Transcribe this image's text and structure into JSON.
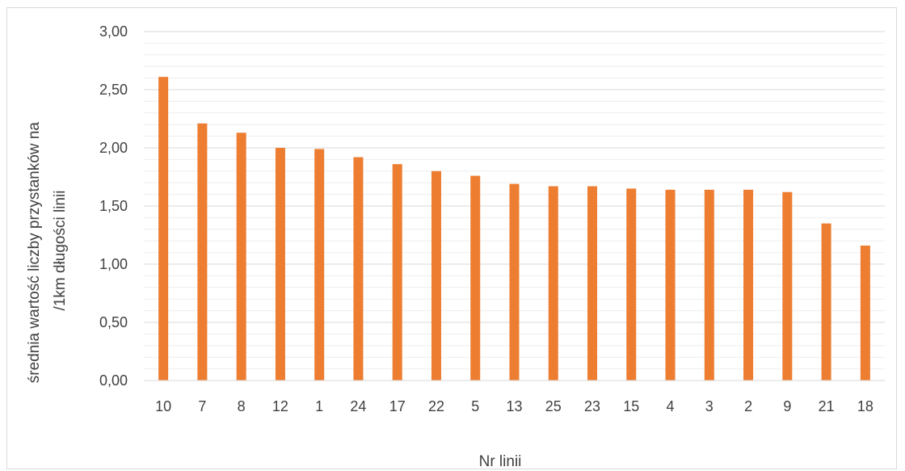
{
  "chart_data": {
    "type": "bar",
    "title": "",
    "xlabel": "Nr linii",
    "ylabel_lines": [
      "średnia wartość liczby przystanków na",
      "/1km długości linii"
    ],
    "categories": [
      "10",
      "7",
      "8",
      "12",
      "1",
      "24",
      "17",
      "22",
      "5",
      "13",
      "25",
      "23",
      "15",
      "4",
      "3",
      "2",
      "9",
      "21",
      "18"
    ],
    "values": [
      2.61,
      2.21,
      2.13,
      2.0,
      1.99,
      1.92,
      1.86,
      1.8,
      1.76,
      1.69,
      1.67,
      1.67,
      1.65,
      1.64,
      1.64,
      1.64,
      1.62,
      1.35,
      1.16
    ],
    "ylim": [
      0,
      3
    ],
    "yticks": [
      0,
      0.5,
      1.0,
      1.5,
      2.0,
      2.5,
      3.0
    ],
    "ytick_labels": [
      "0,00",
      "0,50",
      "1,00",
      "1,50",
      "2,00",
      "2,50",
      "3,00"
    ],
    "grid": true,
    "minor_grid": true,
    "legend": "none",
    "colors": {
      "bar": "#ED7D31",
      "major_grid": "#d9d9d9",
      "minor_grid": "#eeeeee",
      "text": "#404040"
    }
  }
}
